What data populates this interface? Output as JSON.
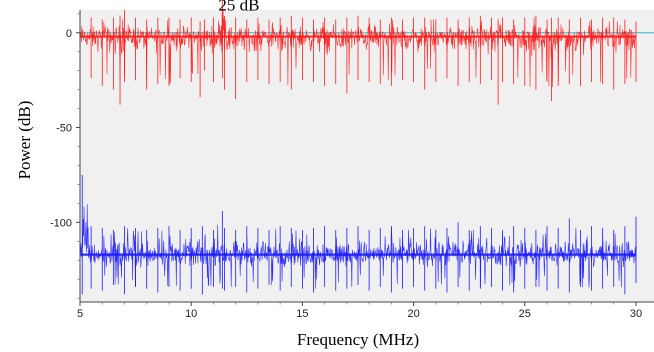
{
  "chart_data": {
    "type": "line",
    "title": "",
    "xlabel": "Frequency (MHz)",
    "ylabel": "Power (dB)",
    "xlim": [
      5,
      30
    ],
    "ylim": [
      -142,
      12
    ],
    "x_ticks": [
      5,
      10,
      15,
      20,
      25,
      30
    ],
    "y_ticks": [
      0,
      -50,
      -100
    ],
    "x_tick_labels": [
      "5",
      "10",
      "15",
      "20",
      "25",
      "30"
    ],
    "y_tick_labels": [
      "0",
      "-50",
      "-100"
    ],
    "grid": false,
    "legend": "none",
    "annotation": {
      "text": "25 dB",
      "x": 11.4,
      "y": 15
    },
    "reference_line": {
      "y": 0,
      "color": "#4fc3c8"
    },
    "series": [
      {
        "color": "#ff1a1a",
        "baseline": -2,
        "x": [
          5.0,
          5.5,
          6.0,
          6.5,
          6.8,
          7.0,
          7.5,
          8.0,
          8.5,
          9.0,
          9.5,
          10.0,
          10.4,
          10.6,
          11.0,
          11.4,
          11.5,
          12.0,
          12.5,
          13.0,
          13.5,
          14.0,
          14.5,
          15.0,
          15.5,
          16.0,
          16.5,
          17.0,
          17.5,
          18.0,
          18.5,
          19.0,
          19.5,
          20.0,
          20.5,
          21.0,
          21.5,
          22.0,
          22.5,
          23.0,
          23.5,
          23.8,
          24.0,
          24.5,
          25.0,
          25.5,
          26.0,
          26.2,
          26.5,
          27.0,
          27.5,
          28.0,
          28.5,
          29.0,
          29.5,
          30.0
        ],
        "upper": [
          9,
          8,
          7,
          8,
          9,
          12,
          8,
          7,
          8,
          8,
          7,
          8,
          6,
          7,
          8,
          22,
          9,
          8,
          7,
          8,
          7,
          8,
          9,
          8,
          7,
          8,
          7,
          8,
          9,
          8,
          7,
          8,
          7,
          8,
          8,
          7,
          8,
          7,
          8,
          9,
          8,
          7,
          8,
          7,
          8,
          9,
          7,
          8,
          8,
          7,
          8,
          7,
          8,
          8,
          7,
          6
        ],
        "lower": [
          -22,
          -24,
          -28,
          -30,
          -38,
          -26,
          -25,
          -30,
          -27,
          -28,
          -24,
          -26,
          -34,
          -20,
          -26,
          -24,
          -30,
          -35,
          -26,
          -25,
          -27,
          -26,
          -30,
          -25,
          -26,
          -28,
          -27,
          -32,
          -25,
          -26,
          -27,
          -28,
          -25,
          -26,
          -30,
          -26,
          -24,
          -28,
          -26,
          -27,
          -25,
          -38,
          -26,
          -27,
          -28,
          -30,
          -26,
          -36,
          -28,
          -27,
          -28,
          -26,
          -27,
          -30,
          -27,
          -26
        ]
      },
      {
        "color": "#1a1aff",
        "baseline": -117,
        "x": [
          5.0,
          5.1,
          5.5,
          6.0,
          6.5,
          7.0,
          7.5,
          8.0,
          8.5,
          9.0,
          9.5,
          10.0,
          10.5,
          11.0,
          11.4,
          11.5,
          12.0,
          12.5,
          13.0,
          13.5,
          14.0,
          14.5,
          15.0,
          15.5,
          16.0,
          16.5,
          17.0,
          17.5,
          18.0,
          18.5,
          19.0,
          19.5,
          20.0,
          20.5,
          21.0,
          21.5,
          22.0,
          22.5,
          23.0,
          23.5,
          24.0,
          24.5,
          25.0,
          25.5,
          26.0,
          26.5,
          27.0,
          27.5,
          28.0,
          28.5,
          29.0,
          29.5,
          30.0
        ],
        "upper": [
          -98,
          -75,
          -102,
          -103,
          -104,
          -102,
          -103,
          -104,
          -103,
          -102,
          -104,
          -103,
          -102,
          -104,
          -94,
          -103,
          -104,
          -102,
          -103,
          -104,
          -102,
          -103,
          -104,
          -103,
          -102,
          -104,
          -103,
          -102,
          -104,
          -103,
          -102,
          -104,
          -103,
          -102,
          -104,
          -103,
          -100,
          -104,
          -102,
          -103,
          -104,
          -102,
          -103,
          -104,
          -102,
          -103,
          -98,
          -104,
          -102,
          -103,
          -104,
          -102,
          -97
        ],
        "lower": [
          -130,
          -138,
          -135,
          -136,
          -133,
          -138,
          -134,
          -135,
          -137,
          -134,
          -136,
          -135,
          -138,
          -134,
          -135,
          -136,
          -134,
          -137,
          -135,
          -133,
          -136,
          -134,
          -135,
          -137,
          -134,
          -136,
          -135,
          -133,
          -136,
          -134,
          -137,
          -135,
          -134,
          -136,
          -135,
          -137,
          -134,
          -136,
          -135,
          -134,
          -136,
          -137,
          -135,
          -134,
          -136,
          -135,
          -137,
          -134,
          -136,
          -135,
          -134,
          -138,
          -132
        ]
      }
    ]
  }
}
